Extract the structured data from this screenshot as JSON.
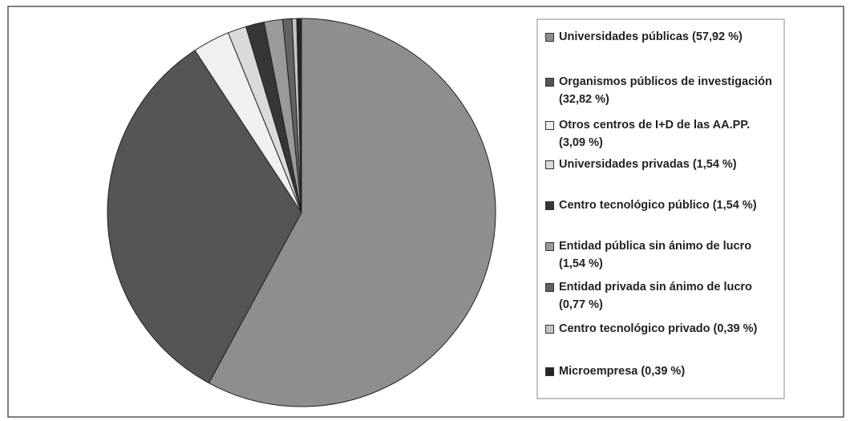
{
  "chart_data": {
    "type": "pie",
    "categories": [
      "Universidades públicas (57,92 %)",
      "Organismos públicos de investigación (32,82 %)",
      "Otros centros de I+D de las AA.PP. (3,09 %)",
      "Universidades privadas (1,54 %)",
      "Centro tecnológico público (1,54 %)",
      "Entidad pública sin ánimo de lucro (1,54 %)",
      "Entidad privada sin ánimo de lucro (0,77 %)",
      "Centro tecnológico privado (0,39 %)",
      "Microempresa (0,39 %)"
    ],
    "values": [
      57.92,
      32.82,
      3.09,
      1.54,
      1.54,
      1.54,
      0.77,
      0.39,
      0.39
    ],
    "colors": [
      "#8e8e8e",
      "#555555",
      "#f0f0f0",
      "#dadada",
      "#363636",
      "#9a9a9a",
      "#626262",
      "#c4c4c4",
      "#262626"
    ]
  }
}
